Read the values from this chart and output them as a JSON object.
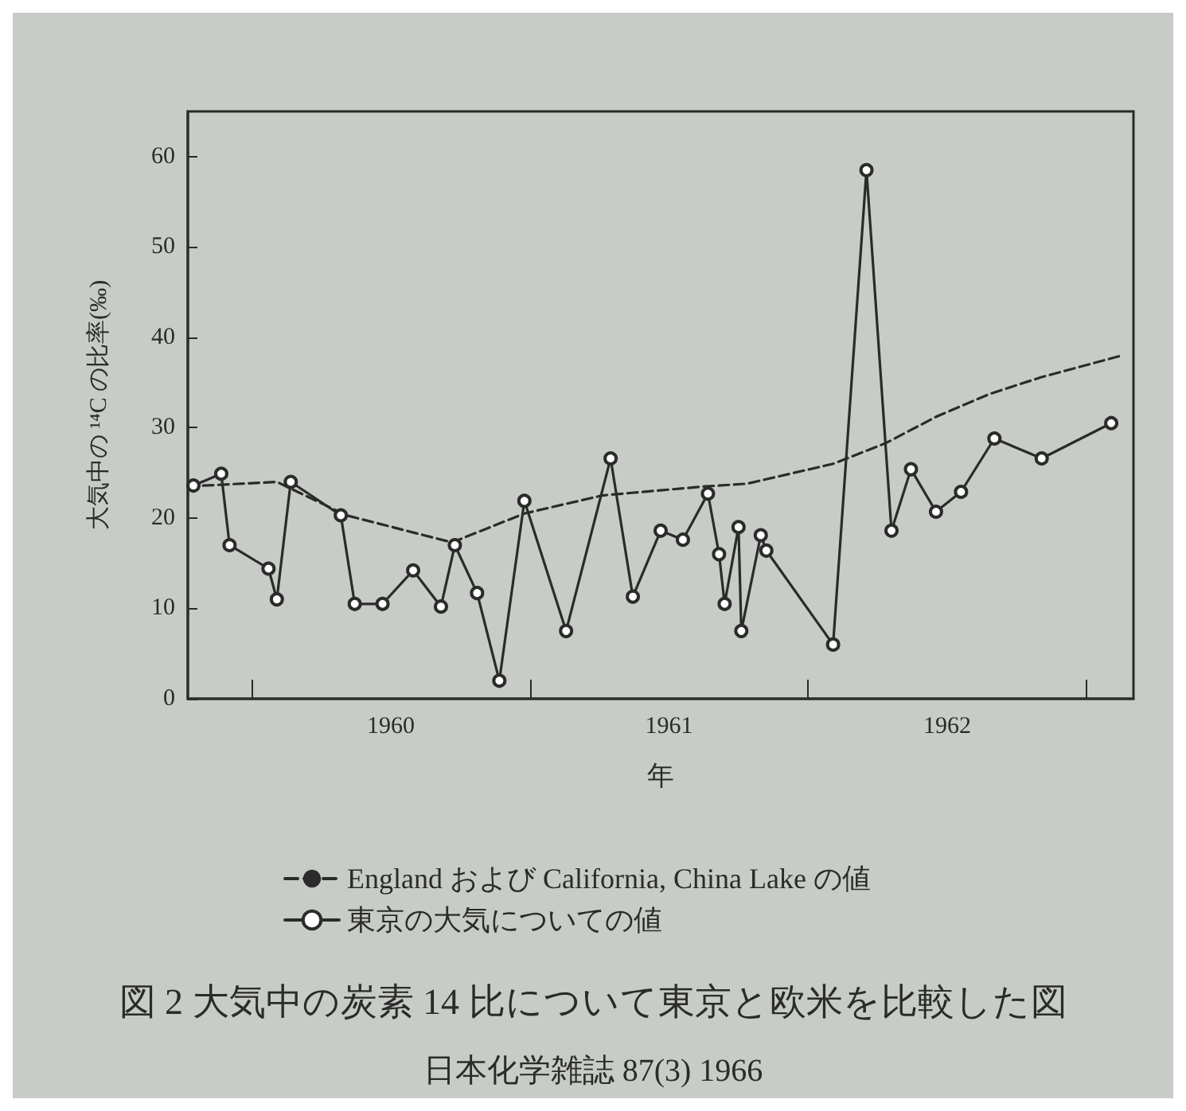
{
  "chart_data": {
    "type": "line",
    "title": "図 2 大気中の炭素 14 比について東京と欧米を比較した図",
    "xlabel": "年",
    "ylabel": "大気中の ¹⁴C の比率(‰)",
    "annotations": [
      "日本化学雑誌 87(3) 1966"
    ],
    "xlim": [
      1959.77,
      1963.17
    ],
    "xticks": [
      {
        "value": 1960,
        "label": null
      },
      {
        "value": 1960.5,
        "label": "1960"
      },
      {
        "value": 1961,
        "label": null
      },
      {
        "value": 1961.5,
        "label": "1961"
      },
      {
        "value": 1962,
        "label": null
      },
      {
        "value": 1962.5,
        "label": "1962"
      },
      {
        "value": 1963,
        "label": null
      }
    ],
    "ylim": [
      0,
      65
    ],
    "yticks": [
      0,
      10,
      20,
      30,
      40,
      50,
      60
    ],
    "legend": "bottom",
    "series": [
      {
        "name": "England および California, China Lake の値",
        "color": "#2b2b2b",
        "line_style": "dashed",
        "marker": "none",
        "x": [
          1959.77,
          1960.09,
          1960.34,
          1960.72,
          1960.98,
          1961.26,
          1961.63,
          1961.78,
          1962.09,
          1962.28,
          1962.46,
          1962.65,
          1962.84,
          1963.13
        ],
        "values": [
          23.5,
          24,
          20.3,
          17.3,
          20.5,
          22.5,
          23.5,
          23.8,
          26,
          28.3,
          31.2,
          33.7,
          35.6,
          38
        ]
      },
      {
        "name": "東京の大気についての値",
        "color": "#2b2b2b",
        "line_style": "solid",
        "marker": "circle",
        "x": [
          1959.79,
          1959.89,
          1959.92,
          1960.06,
          1960.09,
          1960.14,
          1960.32,
          1960.37,
          1960.47,
          1960.58,
          1960.68,
          1960.73,
          1960.81,
          1960.89,
          1960.98,
          1961.13,
          1961.29,
          1961.37,
          1961.47,
          1961.55,
          1961.64,
          1961.68,
          1961.7,
          1961.75,
          1961.76,
          1961.83,
          1961.85,
          1962.09,
          1962.21,
          1962.3,
          1962.37,
          1962.46,
          1962.55,
          1962.67,
          1962.84,
          1963.09
        ],
        "values": [
          23.6,
          24.9,
          17,
          14.4,
          11,
          24,
          20.3,
          10.5,
          10.5,
          14.2,
          10.2,
          17,
          11.7,
          2,
          21.9,
          7.5,
          26.6,
          11.3,
          18.6,
          17.6,
          22.7,
          16,
          10.5,
          19,
          7.5,
          18.1,
          16.4,
          6,
          58.5,
          18.6,
          25.4,
          20.7,
          22.9,
          28.8,
          26.6,
          30.5
        ]
      }
    ]
  }
}
